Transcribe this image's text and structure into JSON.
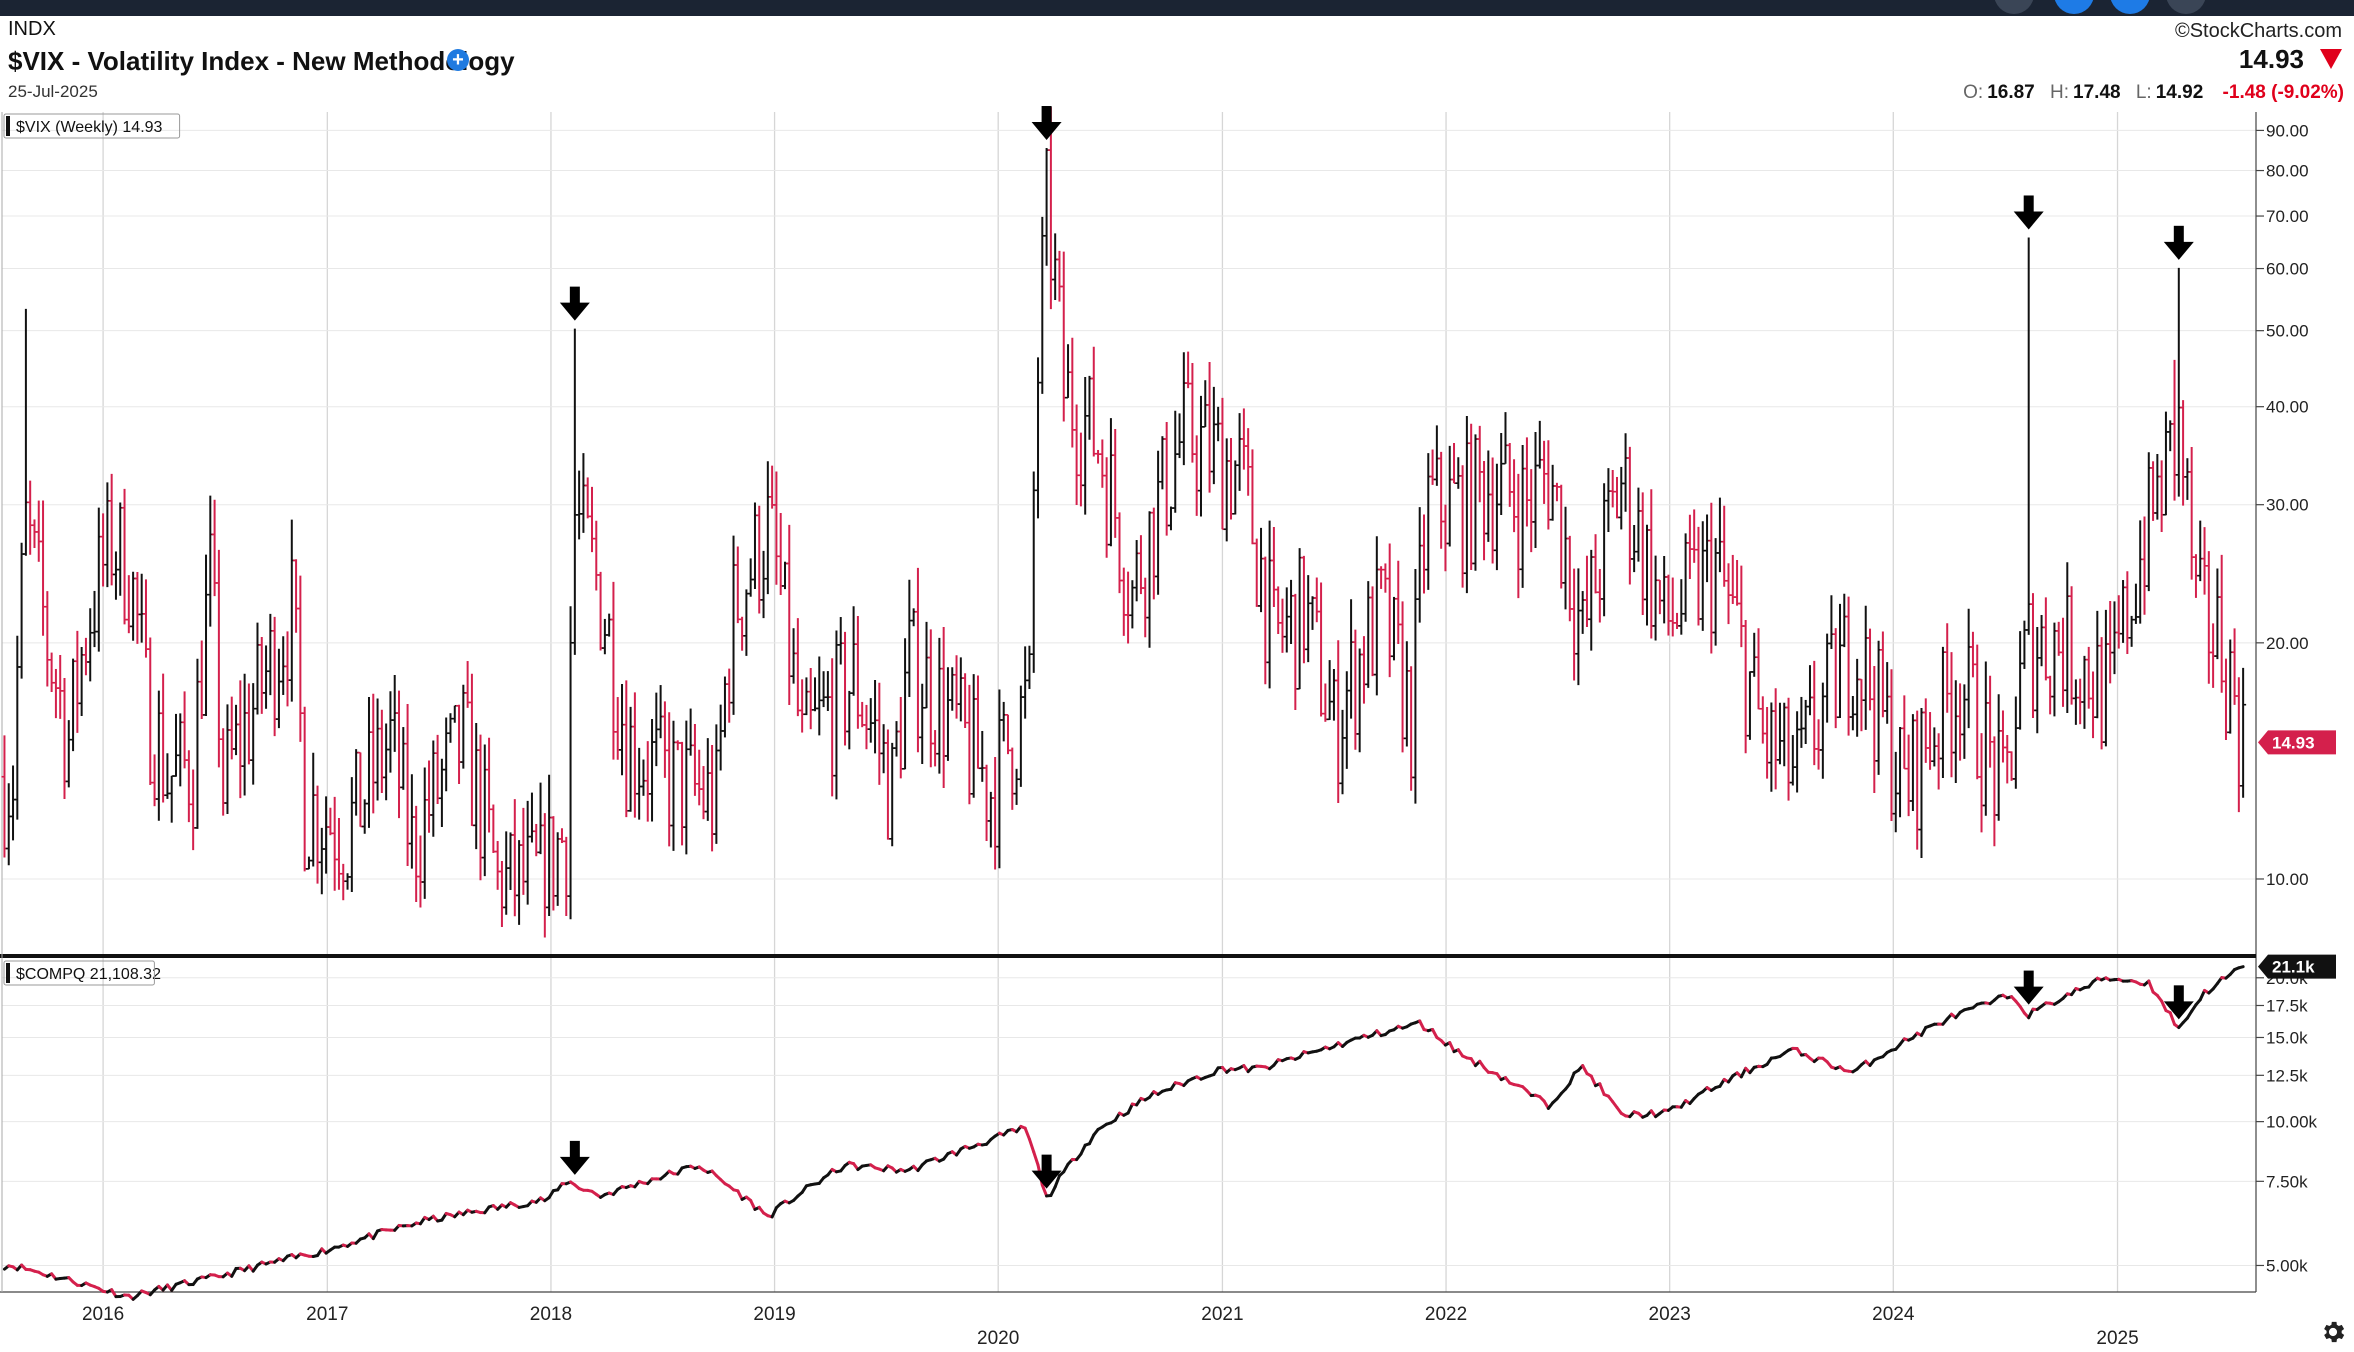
{
  "header": {
    "exchange": "INDX",
    "title": "$VIX - Volatility Index - New Methodology",
    "date": "25-Jul-2025",
    "brand": "©StockCharts.com",
    "last": "14.93",
    "open_label": "O:",
    "open": "16.87",
    "high_label": "H:",
    "high": "17.48",
    "low_label": "L:",
    "low": "14.92",
    "change": "-1.48 (-9.02%)"
  },
  "colors": {
    "up": "#111111",
    "down": "#d4204c",
    "grid": "#d6d6d6",
    "accent": "#e0001b",
    "topbar": "#1b2433"
  },
  "chart_data": [
    {
      "type": "ohlc",
      "legend_label": "$VIX (Weekly) 14.93",
      "scale": "log",
      "ylim": [
        8,
        95
      ],
      "y_ticks": [
        "10.00",
        "20.00",
        "30.00",
        "40.00",
        "50.00",
        "60.00",
        "70.00",
        "80.00",
        "90.00"
      ],
      "last_value_label": "14.93",
      "series_points": [
        [
          "2015-08-07",
          13.5
        ],
        [
          "2015-08-28",
          28.0
        ],
        [
          "2015-10-02",
          20.0
        ],
        [
          "2015-11-06",
          15.0
        ],
        [
          "2015-12-11",
          22.0
        ],
        [
          "2016-01-15",
          27.0
        ],
        [
          "2016-02-12",
          25.0
        ],
        [
          "2016-03-11",
          17.0
        ],
        [
          "2016-04-15",
          13.5
        ],
        [
          "2016-05-27",
          14.0
        ],
        [
          "2016-06-24",
          24.0
        ],
        [
          "2016-07-15",
          13.0
        ],
        [
          "2016-09-09",
          17.0
        ],
        [
          "2016-11-04",
          22.0
        ],
        [
          "2016-11-25",
          12.5
        ],
        [
          "2017-02-03",
          11.5
        ],
        [
          "2017-04-14",
          15.0
        ],
        [
          "2017-05-19",
          11.0
        ],
        [
          "2017-08-11",
          15.0
        ],
        [
          "2017-10-06",
          9.8
        ],
        [
          "2017-12-15",
          10.0
        ],
        [
          "2018-01-26",
          11.5
        ],
        [
          "2018-02-09",
          29.0
        ],
        [
          "2018-03-23",
          23.0
        ],
        [
          "2018-05-04",
          15.0
        ],
        [
          "2018-07-06",
          13.5
        ],
        [
          "2018-09-28",
          12.5
        ],
        [
          "2018-10-26",
          22.0
        ],
        [
          "2018-12-21",
          28.0
        ],
        [
          "2019-02-15",
          14.5
        ],
        [
          "2019-05-10",
          18.0
        ],
        [
          "2019-07-12",
          13.0
        ],
        [
          "2019-08-09",
          19.0
        ],
        [
          "2019-10-04",
          16.5
        ],
        [
          "2019-12-20",
          13.0
        ],
        [
          "2020-02-21",
          17.0
        ],
        [
          "2020-03-20",
          72.0
        ],
        [
          "2020-04-17",
          42.0
        ],
        [
          "2020-06-12",
          36.0
        ],
        [
          "2020-08-07",
          23.0
        ],
        [
          "2020-10-30",
          37.0
        ],
        [
          "2021-01-29",
          33.0
        ],
        [
          "2021-03-26",
          20.0
        ],
        [
          "2021-05-14",
          22.0
        ],
        [
          "2021-07-02",
          15.5
        ],
        [
          "2021-09-17",
          22.0
        ],
        [
          "2021-11-05",
          16.0
        ],
        [
          "2021-12-03",
          30.0
        ],
        [
          "2022-01-28",
          30.0
        ],
        [
          "2022-03-11",
          32.0
        ],
        [
          "2022-05-13",
          30.0
        ],
        [
          "2022-06-17",
          33.0
        ],
        [
          "2022-08-12",
          20.0
        ],
        [
          "2022-10-14",
          32.0
        ],
        [
          "2022-12-23",
          21.0
        ],
        [
          "2023-03-17",
          25.0
        ],
        [
          "2023-06-02",
          15.0
        ],
        [
          "2023-07-28",
          13.5
        ],
        [
          "2023-10-27",
          20.0
        ],
        [
          "2024-01-19",
          13.0
        ],
        [
          "2024-04-19",
          18.0
        ],
        [
          "2024-06-28",
          12.5
        ],
        [
          "2024-08-09",
          20.0
        ],
        [
          "2024-10-04",
          20.0
        ],
        [
          "2024-12-20",
          17.0
        ],
        [
          "2025-04-11",
          37.0
        ],
        [
          "2025-05-09",
          22.0
        ],
        [
          "2025-06-20",
          20.0
        ],
        [
          "2025-07-25",
          14.93
        ]
      ],
      "spikes": [
        [
          "2015-08-28",
          53.3
        ],
        [
          "2018-02-09",
          50.3
        ],
        [
          "2020-03-20",
          85.47
        ],
        [
          "2024-08-09",
          65.73
        ],
        [
          "2025-04-11",
          60.13
        ],
        [
          "2025-04-04",
          45.9
        ]
      ]
    },
    {
      "type": "line",
      "legend_label": "$COMPQ 21,108.32",
      "scale": "log",
      "ylim": [
        4400,
        22000
      ],
      "y_ticks": [
        "5.00k",
        "7.50k",
        "10.00k",
        "12.5k",
        "15.0k",
        "17.5k",
        "20.0k"
      ],
      "last_value_label": "21.1k",
      "series_points": [
        [
          "2015-08-07",
          5000
        ],
        [
          "2016-02-12",
          4300
        ],
        [
          "2016-06-24",
          4700
        ],
        [
          "2016-12-30",
          5380
        ],
        [
          "2017-06-09",
          6200
        ],
        [
          "2017-12-29",
          6900
        ],
        [
          "2018-01-26",
          7500
        ],
        [
          "2018-03-23",
          6990
        ],
        [
          "2018-08-31",
          8100
        ],
        [
          "2018-12-21",
          6330
        ],
        [
          "2019-04-26",
          8100
        ],
        [
          "2019-08-09",
          7900
        ],
        [
          "2020-02-14",
          9700
        ],
        [
          "2020-03-20",
          6900
        ],
        [
          "2020-06-12",
          9600
        ],
        [
          "2020-09-04",
          11300
        ],
        [
          "2020-12-31",
          12900
        ],
        [
          "2021-03-05",
          12900
        ],
        [
          "2021-08-27",
          15100
        ],
        [
          "2021-11-19",
          16050
        ],
        [
          "2022-01-28",
          13770
        ],
        [
          "2022-06-17",
          10800
        ],
        [
          "2022-08-12",
          13000
        ],
        [
          "2022-10-14",
          10300
        ],
        [
          "2022-12-30",
          10450
        ],
        [
          "2023-07-21",
          14100
        ],
        [
          "2023-10-27",
          12650
        ],
        [
          "2024-03-29",
          16400
        ],
        [
          "2024-07-12",
          18400
        ],
        [
          "2024-08-09",
          16750
        ],
        [
          "2024-12-13",
          20000
        ],
        [
          "2025-02-21",
          19500
        ],
        [
          "2025-04-11",
          15600
        ],
        [
          "2025-05-23",
          18600
        ],
        [
          "2025-07-25",
          21108
        ]
      ]
    }
  ],
  "x_axis": {
    "ticks": [
      "2016",
      "2017",
      "2018",
      "2019",
      "2020",
      "2021",
      "2022",
      "2023",
      "2024",
      "2025"
    ],
    "xlim": [
      "2015-07-20",
      "2025-08-15"
    ]
  },
  "markers": {
    "icon": "down-arrow-icon",
    "dates": [
      "2018-02-09",
      "2020-03-20",
      "2024-08-09",
      "2025-04-11"
    ]
  },
  "settings_icon": "gear-icon"
}
